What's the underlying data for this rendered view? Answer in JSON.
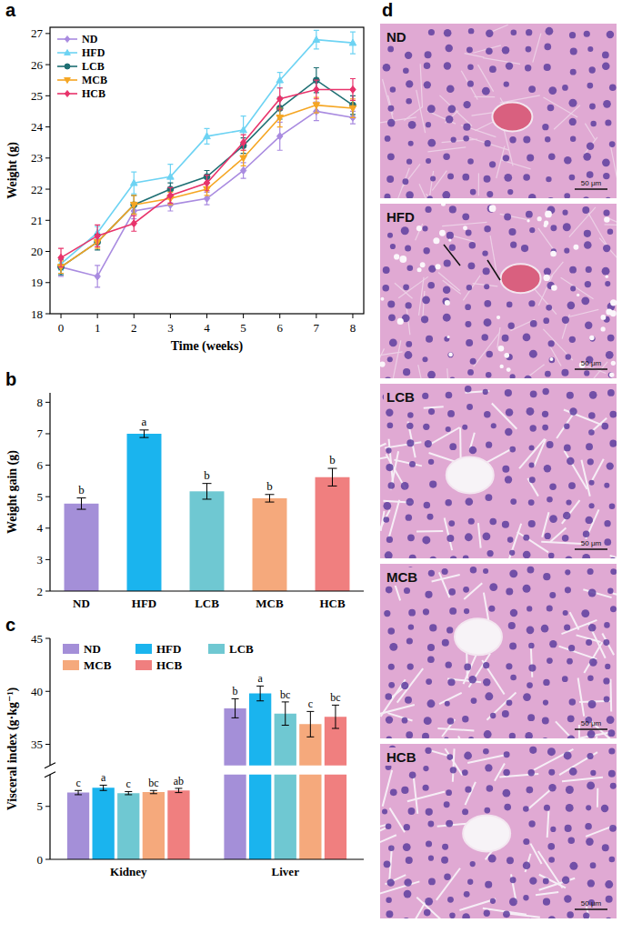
{
  "chart_data": [
    {
      "panel": "a",
      "type": "line",
      "x_label": "Time (weeks)",
      "y_label": "Weight (g)",
      "x": [
        0,
        1,
        2,
        3,
        4,
        5,
        6,
        7,
        8
      ],
      "xlim": [
        -0.3,
        8.3
      ],
      "xticks": [
        0,
        1,
        2,
        3,
        4,
        5,
        6,
        7,
        8
      ],
      "ylim": [
        18,
        27.2
      ],
      "yticks": [
        18,
        19,
        20,
        21,
        22,
        23,
        24,
        25,
        26,
        27
      ],
      "grid": false,
      "legend": "top-left",
      "series": [
        {
          "name": "ND",
          "color": "#a98be0",
          "marker": "diamond",
          "values": [
            19.5,
            19.2,
            21.3,
            21.5,
            21.7,
            22.6,
            23.7,
            24.5,
            24.3
          ],
          "errors": [
            0.3,
            0.35,
            0.25,
            0.2,
            0.2,
            0.25,
            0.45,
            0.3,
            0.2
          ]
        },
        {
          "name": "HFD",
          "color": "#6dd3f3",
          "marker": "triangle-up",
          "values": [
            19.6,
            20.6,
            22.2,
            22.4,
            23.7,
            23.9,
            25.5,
            26.8,
            26.7
          ],
          "errors": [
            0.2,
            0.2,
            0.35,
            0.4,
            0.25,
            0.45,
            0.25,
            0.3,
            0.35
          ]
        },
        {
          "name": "LCB",
          "color": "#1e6f73",
          "marker": "circle",
          "values": [
            19.5,
            20.3,
            21.5,
            22.0,
            22.4,
            23.4,
            24.6,
            25.5,
            24.7
          ],
          "errors": [
            0.25,
            0.25,
            0.3,
            0.2,
            0.2,
            0.25,
            0.35,
            0.4,
            0.3
          ]
        },
        {
          "name": "MCB",
          "color": "#f5a623",
          "marker": "triangle-down",
          "values": [
            19.5,
            20.3,
            21.5,
            21.7,
            22.0,
            23.0,
            24.3,
            24.7,
            24.6
          ],
          "errors": [
            0.2,
            0.2,
            0.3,
            0.2,
            0.2,
            0.25,
            0.3,
            0.25,
            0.3
          ]
        },
        {
          "name": "HCB",
          "color": "#e8336b",
          "marker": "diamond",
          "values": [
            19.8,
            20.5,
            20.9,
            21.8,
            22.2,
            23.5,
            24.9,
            25.2,
            25.2
          ],
          "errors": [
            0.3,
            0.35,
            0.25,
            0.25,
            0.25,
            0.25,
            0.35,
            0.3,
            0.35
          ]
        }
      ]
    },
    {
      "panel": "b",
      "type": "bar",
      "y_label": "Weight gain (g)",
      "categories": [
        "ND",
        "HFD",
        "LCB",
        "MCB",
        "HCB"
      ],
      "values": [
        4.78,
        7.0,
        5.17,
        4.95,
        5.62
      ],
      "errors": [
        0.18,
        0.12,
        0.25,
        0.12,
        0.28
      ],
      "colors": [
        "#a48fd8",
        "#1ab4ee",
        "#6fc8d2",
        "#f5a97c",
        "#f07f7f"
      ],
      "annotations": [
        "b",
        "a",
        "b",
        "b",
        "b"
      ],
      "ylim": [
        2,
        8.3
      ],
      "yticks": [
        2,
        3,
        4,
        5,
        6,
        7,
        8
      ],
      "grid": false
    },
    {
      "panel": "c",
      "type": "bar",
      "y_label": "Visceral index (g·kg⁻¹)",
      "categories": [
        "Kidney",
        "Liver"
      ],
      "ylim": [
        0,
        45
      ],
      "y_break": [
        8,
        33
      ],
      "yticks": [
        0,
        5,
        35,
        40,
        45
      ],
      "grid": false,
      "legend": "top-left",
      "series": [
        {
          "name": "ND",
          "color": "#a48fd8",
          "values": [
            6.3,
            38.4
          ],
          "errors": [
            0.2,
            0.9
          ],
          "annotations": [
            "c",
            "b"
          ]
        },
        {
          "name": "HFD",
          "color": "#1ab4ee",
          "values": [
            6.75,
            39.8
          ],
          "errors": [
            0.25,
            0.7
          ],
          "annotations": [
            "a",
            "a"
          ]
        },
        {
          "name": "LCB",
          "color": "#6fc8d2",
          "values": [
            6.25,
            37.9
          ],
          "errors": [
            0.15,
            1.1
          ],
          "annotations": [
            "c",
            "bc"
          ]
        },
        {
          "name": "MCB",
          "color": "#f5a97c",
          "values": [
            6.35,
            36.9
          ],
          "errors": [
            0.15,
            1.2
          ],
          "annotations": [
            "bc",
            "c"
          ]
        },
        {
          "name": "HCB",
          "color": "#f07f7f",
          "values": [
            6.5,
            37.6
          ],
          "errors": [
            0.2,
            1.1
          ],
          "annotations": [
            "ab",
            "bc"
          ]
        }
      ]
    }
  ],
  "histology": {
    "panel": "d",
    "images": [
      "ND",
      "HFD",
      "LCB",
      "MCB",
      "HCB"
    ],
    "scale_bar": "50 μm"
  }
}
